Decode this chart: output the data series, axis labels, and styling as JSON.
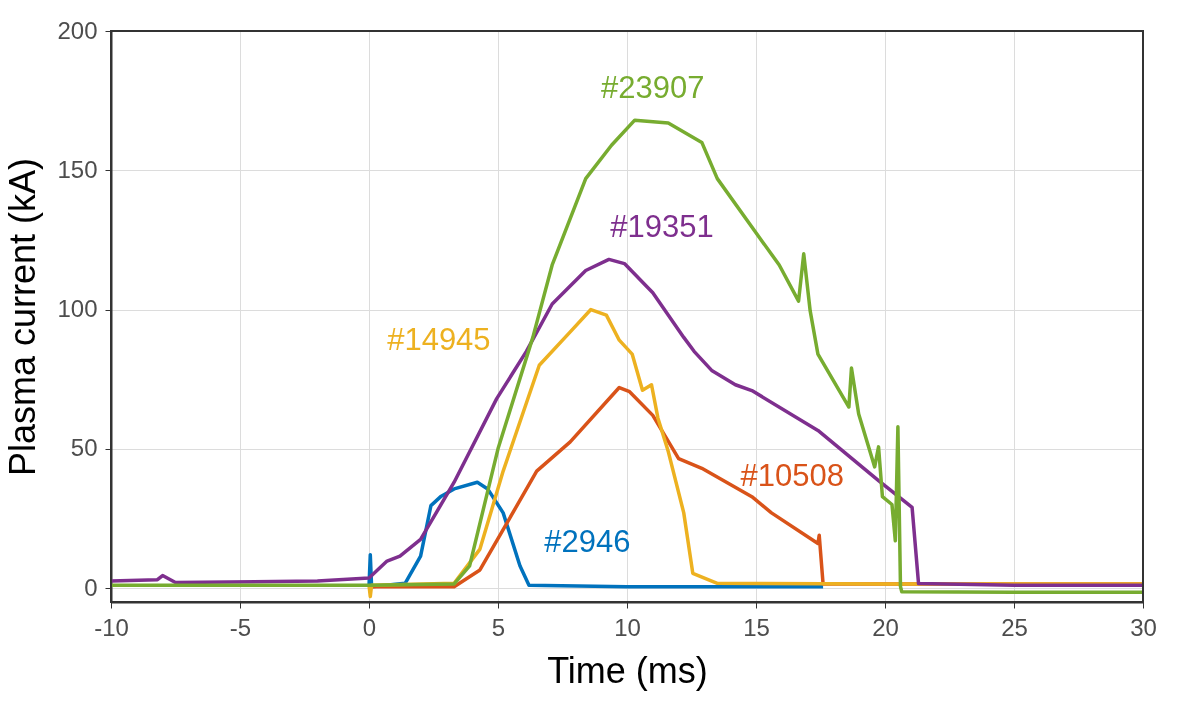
{
  "chart_data": {
    "type": "line",
    "xlabel": "Time (ms)",
    "ylabel": "Plasma current (kA)",
    "xlim": [
      -10,
      30
    ],
    "ylim": [
      -5,
      200
    ],
    "xticks": [
      -10,
      -5,
      0,
      5,
      10,
      15,
      20,
      25,
      30
    ],
    "yticks": [
      0,
      50,
      100,
      150,
      200
    ],
    "grid": true,
    "marker": "none",
    "line_style": "solid",
    "series": [
      {
        "name": "#2946",
        "color": "#0072bd",
        "x": [
          0,
          0.05,
          0.1,
          1.4,
          2,
          2.4,
          2.8,
          3.3,
          4.2,
          4.6,
          5.2,
          5.85,
          6.2,
          10,
          17.6
        ],
        "values": [
          0.5,
          12,
          0.5,
          1.7,
          11.5,
          29.6,
          33,
          35.6,
          38,
          35.6,
          27,
          8,
          1,
          0.5,
          0.5
        ]
      },
      {
        "name": "#10508",
        "color": "#d95319",
        "x": [
          0,
          3.3,
          4.3,
          5.2,
          6.5,
          7.8,
          9.7,
          10.1,
          11,
          12,
          12.9,
          14.84,
          15.6,
          17.4,
          17.45,
          17.6,
          20,
          25,
          30
        ],
        "values": [
          0.5,
          0.5,
          6.5,
          21,
          42,
          52.5,
          72,
          70.5,
          62,
          46.5,
          43,
          32.8,
          27,
          16,
          19,
          1.5,
          1.5,
          1.5,
          1.5
        ]
      },
      {
        "name": "#14945",
        "color": "#edb120",
        "x": [
          0,
          0.05,
          0.1,
          3.3,
          4.3,
          5.2,
          6.6,
          7.8,
          8.6,
          9.2,
          9.7,
          10.2,
          10.6,
          10.95,
          11.2,
          11.6,
          12.2,
          12.55,
          13.5,
          20,
          25,
          30
        ],
        "values": [
          1,
          -3,
          1,
          1.7,
          14,
          42,
          80,
          92,
          100,
          98,
          89,
          84,
          71,
          73,
          61,
          49,
          27,
          5.3,
          1.7,
          1.5,
          1.5,
          1.5
        ]
      },
      {
        "name": "#19351",
        "color": "#7e2f8e",
        "x": [
          -10,
          -8.2,
          -8,
          -7.5,
          -2,
          0,
          0.7,
          1.2,
          2,
          3.3,
          4.95,
          6.1,
          7.1,
          8.4,
          9.3,
          9.9,
          11,
          12.2,
          12.6,
          13.3,
          14.2,
          14.84,
          17.4,
          19.75,
          21.05,
          21.3,
          25,
          30
        ],
        "values": [
          2.5,
          3,
          4.5,
          2,
          2.5,
          3.6,
          9.7,
          11.5,
          17.5,
          38,
          68,
          85,
          102,
          114,
          118,
          116.5,
          106,
          90,
          85,
          78,
          73,
          70.9,
          56.6,
          38.6,
          29,
          1.6,
          1,
          1
        ]
      },
      {
        "name": "#23907",
        "color": "#77ac30",
        "x": [
          -10,
          0,
          3.3,
          3.9,
          5,
          6.35,
          7.1,
          8.4,
          9.4,
          10.3,
          11.6,
          12.9,
          13.5,
          14.84,
          15.9,
          16.65,
          16.85,
          17.1,
          17.4,
          18.6,
          18.7,
          18.98,
          19.6,
          19.75,
          19.9,
          20.27,
          20.4,
          20.5,
          20.6,
          20.65,
          25,
          30
        ],
        "values": [
          1,
          1,
          1.5,
          8,
          50,
          90,
          116,
          147,
          159,
          168,
          167,
          160,
          147,
          129.6,
          116,
          103,
          120,
          99.5,
          84,
          65,
          79,
          62.5,
          43.5,
          50.7,
          32.8,
          30,
          17,
          57.9,
          0.5,
          -1.3,
          -1.5,
          -1.5
        ]
      }
    ]
  }
}
